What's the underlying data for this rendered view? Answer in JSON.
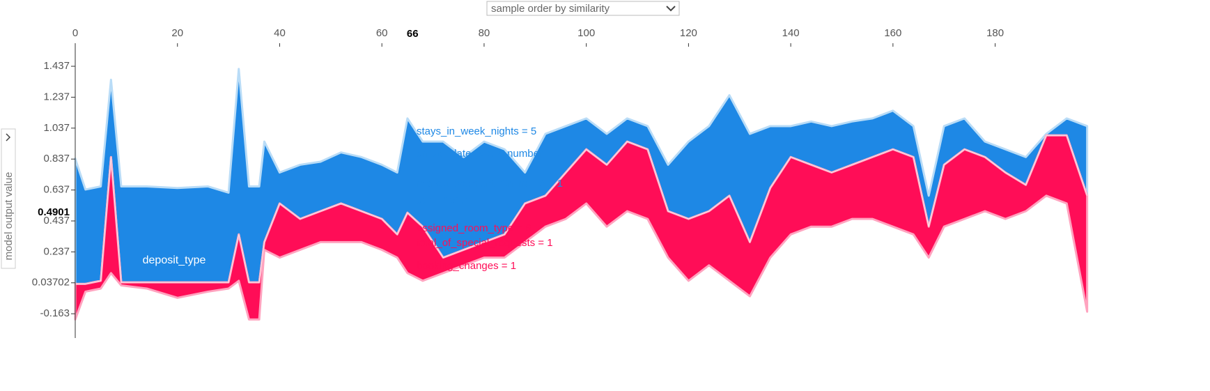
{
  "chart_data": {
    "type": "force",
    "dropdown": "sample order by similarity",
    "ylabel": "model output value",
    "band_label": "deposit_type",
    "highlight_x": 66,
    "highlight_value": 0.4901,
    "annotations": [
      "stays_in_week_nights = 5",
      "arrival_date_week_number = 14",
      "market_segment_Online TA = 1",
      "adr = 161.4",
      "assigned_room_type = 6",
      "total_of_special_requests = 1",
      "booking_changes = 1"
    ],
    "xlim": [
      0,
      199
    ],
    "xticks": [
      0,
      20,
      40,
      60,
      80,
      100,
      120,
      140,
      160,
      180
    ],
    "ylim": [
      -0.32,
      1.586
    ],
    "yticks": [
      -0.163,
      0.03702,
      0.237,
      0.437,
      0.637,
      0.837,
      1.037,
      1.237,
      1.437
    ],
    "x": [
      0,
      2,
      5,
      7,
      9,
      14,
      20,
      26,
      30,
      32,
      34,
      36,
      37,
      40,
      44,
      48,
      52,
      56,
      60,
      63,
      65,
      68,
      72,
      76,
      80,
      84,
      88,
      92,
      96,
      100,
      104,
      108,
      112,
      116,
      120,
      124,
      128,
      132,
      136,
      140,
      144,
      148,
      152,
      156,
      160,
      164,
      167,
      170,
      174,
      178,
      182,
      186,
      190,
      194,
      198
    ],
    "values": [
      0.03,
      0.03,
      0.05,
      0.85,
      0.04,
      0.04,
      0.04,
      0.04,
      0.04,
      0.35,
      0.04,
      0.04,
      0.3,
      0.55,
      0.45,
      0.5,
      0.55,
      0.5,
      0.45,
      0.35,
      0.49,
      0.4,
      0.2,
      0.25,
      0.3,
      0.35,
      0.55,
      0.6,
      0.75,
      0.9,
      0.8,
      0.95,
      0.9,
      0.5,
      0.45,
      0.5,
      0.6,
      0.3,
      0.65,
      0.85,
      0.8,
      0.75,
      0.8,
      0.85,
      0.9,
      0.85,
      0.4,
      0.8,
      0.9,
      0.85,
      0.75,
      0.67,
      0.99,
      0.99,
      0.6
    ],
    "series": [
      {
        "color": "#1e88e5",
        "values": [
          0.84,
          0.64,
          0.66,
          1.35,
          0.66,
          0.66,
          0.65,
          0.66,
          0.62,
          1.42,
          0.66,
          0.66,
          0.95,
          0.75,
          0.8,
          0.82,
          0.88,
          0.85,
          0.8,
          0.75,
          1.1,
          0.95,
          0.95,
          0.85,
          0.95,
          0.9,
          0.75,
          1.0,
          1.05,
          1.1,
          1.0,
          1.1,
          1.05,
          0.8,
          0.95,
          1.05,
          1.25,
          1.0,
          1.05,
          1.05,
          1.08,
          1.05,
          1.08,
          1.1,
          1.15,
          1.05,
          0.6,
          1.05,
          1.1,
          0.95,
          0.9,
          0.85,
          1.0,
          1.1,
          1.05
        ]
      },
      {
        "color": "#ff0d57",
        "values": [
          -0.2,
          -0.02,
          0.0,
          0.1,
          0.02,
          0.0,
          -0.06,
          -0.02,
          0.0,
          0.05,
          -0.2,
          -0.2,
          0.25,
          0.2,
          0.25,
          0.3,
          0.3,
          0.3,
          0.25,
          0.2,
          0.1,
          0.05,
          0.1,
          0.15,
          0.2,
          0.2,
          0.3,
          0.4,
          0.45,
          0.55,
          0.4,
          0.5,
          0.45,
          0.2,
          0.05,
          0.15,
          0.05,
          -0.05,
          0.2,
          0.35,
          0.4,
          0.4,
          0.45,
          0.45,
          0.4,
          0.35,
          0.2,
          0.4,
          0.45,
          0.5,
          0.45,
          0.5,
          0.6,
          0.55,
          -0.15
        ]
      }
    ]
  }
}
